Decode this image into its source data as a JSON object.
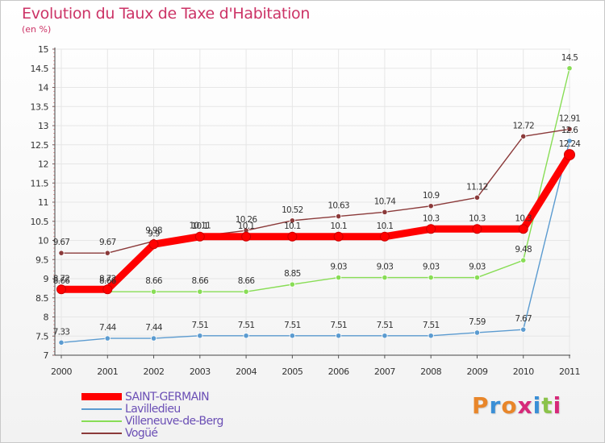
{
  "header": {
    "title": "Evolution du Taux de Taxe d'Habitation",
    "unit": "(en %)"
  },
  "logo": {
    "text": "Proxiti"
  },
  "colors": {
    "title": "#cc3366",
    "legend_text": "#6b4fb5",
    "axis_text": "#333333",
    "grid": "#e6e6e6"
  },
  "chart_data": {
    "type": "line",
    "title": "Evolution du Taux de Taxe d'Habitation",
    "ylabel": "(en %)",
    "xlabel": "",
    "x": [
      "2000",
      "2001",
      "2002",
      "2003",
      "2004",
      "2005",
      "2006",
      "2007",
      "2008",
      "2009",
      "2010",
      "2011"
    ],
    "ylim": [
      7,
      15
    ],
    "yticks": [
      "7",
      "7.5",
      "8",
      "8.5",
      "9",
      "9.5",
      "10",
      "10.5",
      "11",
      "11.5",
      "12",
      "12.5",
      "13",
      "13.5",
      "14",
      "14.5",
      "15"
    ],
    "grid": true,
    "legend_position": "bottom-left",
    "series": [
      {
        "name": "SAINT-GERMAIN",
        "color": "#ff0000",
        "values": [
          8.72,
          8.72,
          9.9,
          10.1,
          10.1,
          10.1,
          10.1,
          10.1,
          10.3,
          10.3,
          10.3,
          12.24
        ],
        "labels": [
          "8.72",
          "8.72",
          "9.9",
          "10.1",
          "10.1",
          "10.1",
          "10.1",
          "10.1",
          "10.3",
          "10.3",
          "10.3",
          "12.24"
        ]
      },
      {
        "name": "Lavilledieu",
        "color": "#5b9bd0",
        "values": [
          7.33,
          7.44,
          7.44,
          7.51,
          7.51,
          7.51,
          7.51,
          7.51,
          7.51,
          7.59,
          7.67,
          12.6
        ],
        "labels": [
          "7.33",
          "7.44",
          "7.44",
          "7.51",
          "7.51",
          "7.51",
          "7.51",
          "7.51",
          "7.51",
          "7.59",
          "7.67",
          "12.6"
        ]
      },
      {
        "name": "Villeneuve-de-Berg",
        "color": "#88dd55",
        "values": [
          8.66,
          8.66,
          8.66,
          8.66,
          8.66,
          8.85,
          9.03,
          9.03,
          9.03,
          9.03,
          9.48,
          14.5
        ],
        "labels": [
          "8.66",
          "8.66",
          "8.66",
          "8.66",
          "8.66",
          "8.85",
          "9.03",
          "9.03",
          "9.03",
          "9.03",
          "9.48",
          "14.5"
        ]
      },
      {
        "name": "Vogüé",
        "color": "#8b3a3a",
        "values": [
          9.67,
          9.67,
          9.98,
          10.11,
          10.26,
          10.52,
          10.63,
          10.74,
          10.9,
          11.12,
          12.72,
          12.91
        ],
        "labels": [
          "9.67",
          "9.67",
          "9.98",
          "10.11",
          "10.26",
          "10.52",
          "10.63",
          "10.74",
          "10.9",
          "11.12",
          "12.72",
          "12.91"
        ]
      }
    ]
  }
}
